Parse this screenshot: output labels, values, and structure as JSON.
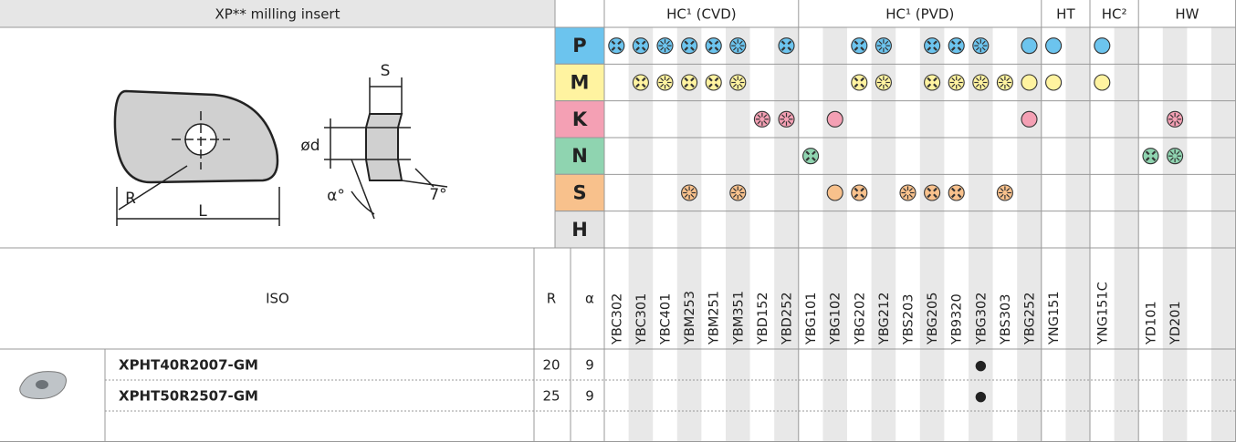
{
  "header": {
    "title": "XP** milling insert",
    "groups": [
      "HC¹ (CVD)",
      "HC¹ (PVD)",
      "HT",
      "HC²",
      "HW"
    ]
  },
  "diagram": {
    "labels": [
      "S",
      "ød",
      "α°",
      "7°",
      "R",
      "L"
    ]
  },
  "materials": [
    "P",
    "M",
    "K",
    "N",
    "S",
    "H"
  ],
  "columns": {
    "iso": "ISO",
    "r": "R",
    "alpha": "α"
  },
  "grades": [
    "YBC302",
    "YBC301",
    "YBC401",
    "YBM253",
    "YBM251",
    "YBM351",
    "YBD152",
    "YBD252",
    "YBG101",
    "YBG102",
    "YBG202",
    "YBG212",
    "YBS203",
    "YBG205",
    "YB9320",
    "YBG302",
    "YBS303",
    "YBG252",
    "YNG151",
    null,
    "YNG151C",
    null,
    "YD101",
    "YD201",
    null,
    null
  ],
  "rows": [
    {
      "designation": "XPHT40R2007-GM",
      "r": 20,
      "alpha": 9,
      "cells": [
        null,
        null,
        null,
        null,
        null,
        null,
        null,
        null,
        null,
        null,
        null,
        null,
        null,
        null,
        null,
        "●",
        null,
        null,
        null,
        null,
        null,
        null,
        null,
        null,
        null,
        null
      ]
    },
    {
      "designation": "XPHT50R2507-GM",
      "r": 25,
      "alpha": 9,
      "cells": [
        null,
        null,
        null,
        null,
        null,
        null,
        null,
        null,
        null,
        null,
        null,
        null,
        null,
        null,
        null,
        "●",
        null,
        null,
        null,
        null,
        null,
        null,
        null,
        null,
        null,
        null
      ]
    }
  ]
}
